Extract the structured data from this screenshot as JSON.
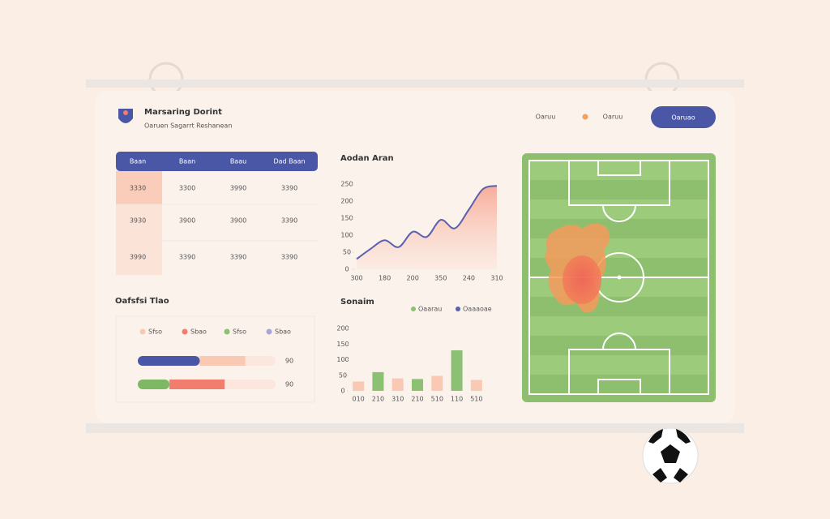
{
  "header": {
    "title": "Marsaring Dorint",
    "subtitle": "Oaruen Sagarrt Reshanean",
    "nav": [
      "Oaruu",
      "Oaruu"
    ],
    "button": "Oaruao"
  },
  "table": {
    "columns": [
      "Baan",
      "Baan",
      "Baau",
      "Dad Baan"
    ],
    "rows": [
      [
        "3330",
        "3300",
        "3990",
        "3390"
      ],
      [
        "3930",
        "3900",
        "3900",
        "3390"
      ],
      [
        "3990",
        "3390",
        "3390",
        "3390"
      ]
    ]
  },
  "chart_data": [
    {
      "type": "line",
      "title": "Aodan Aran",
      "categories": [
        "300",
        null,
        "180",
        null,
        "200",
        null,
        "350",
        null,
        "240",
        null,
        "310"
      ],
      "values": [
        30,
        60,
        85,
        65,
        110,
        95,
        145,
        120,
        175,
        235,
        245
      ],
      "color": "#5a5fb0",
      "fill": "#f7a08c",
      "ylim": [
        0,
        250
      ],
      "yticks": [
        0,
        50,
        100,
        150,
        200,
        250
      ]
    },
    {
      "type": "bar",
      "title": "Sonaim",
      "categories": [
        "010",
        "210",
        "310",
        "210",
        "510",
        "110",
        "510"
      ],
      "values": [
        30,
        60,
        40,
        38,
        48,
        130,
        35
      ],
      "colors": [
        "#f9c9b4",
        "#8cc072",
        "#f9c9b4",
        "#8cc072",
        "#f9c9b4",
        "#8cc072",
        "#f9c9b4"
      ],
      "legend": [
        {
          "name": "Oaarau",
          "color": "#8cc072"
        },
        {
          "name": "Oaaaoae",
          "color": "#5a5fb0"
        }
      ],
      "ylim": [
        0,
        200
      ],
      "yticks": [
        0,
        50,
        100,
        150,
        200
      ]
    },
    {
      "type": "progress",
      "title": "Oafsfsi Tlao",
      "legend": [
        {
          "name": "Sfso",
          "color": "#f9c9b4"
        },
        {
          "name": "Sbao",
          "color": "#f07d6e"
        },
        {
          "name": "Sfso",
          "color": "#8cc072"
        },
        {
          "name": "Sbao",
          "color": "#a8a6d8"
        }
      ],
      "xlim": [
        0,
        100
      ],
      "series": [
        {
          "values": [
            45,
            33
          ],
          "colors": [
            "#4a56a6",
            "#f9c9b4"
          ],
          "label": "90"
        },
        {
          "values": [
            23,
            40
          ],
          "colors": [
            "#7fb865",
            "#f07d6e"
          ],
          "label": "90"
        }
      ]
    }
  ]
}
